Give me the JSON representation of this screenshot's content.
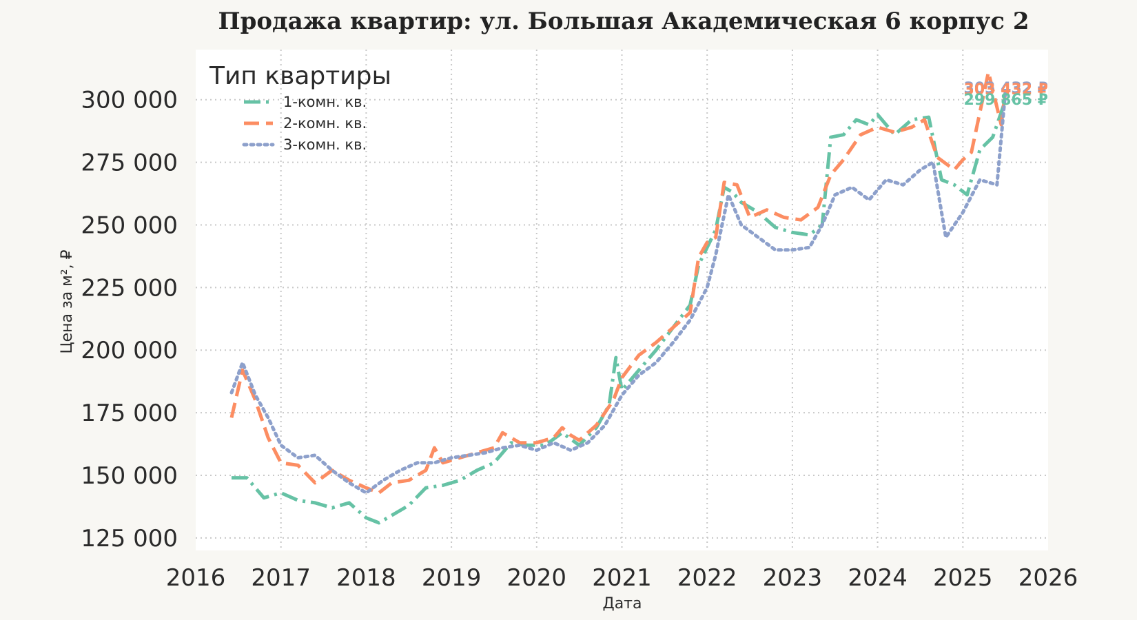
{
  "chart_data": {
    "type": "line",
    "title": "Продажа квартир: ул. Большая Академическая 6 корпус 2",
    "xlabel": "Дата",
    "ylabel": "Цена за м², ₽",
    "xlim": [
      2016,
      2026
    ],
    "ylim": [
      120000,
      320000
    ],
    "x_ticks": [
      "2016",
      "2017",
      "2018",
      "2019",
      "2020",
      "2021",
      "2022",
      "2023",
      "2024",
      "2025",
      "2026"
    ],
    "y_ticks": [
      "125 000",
      "150 000",
      "175 000",
      "200 000",
      "225 000",
      "250 000",
      "275 000",
      "300 000"
    ],
    "y_tick_values": [
      125000,
      150000,
      175000,
      200000,
      225000,
      250000,
      275000,
      300000
    ],
    "grid": true,
    "legend": {
      "title": "Тип квартиры",
      "position": "top-left"
    },
    "series": [
      {
        "name": "1-комн. кв.",
        "color": "#66c2a5",
        "style": "dashdot",
        "end_label": "299 865 ₽",
        "x": [
          2016.42,
          2016.6,
          2016.8,
          2017.0,
          2017.2,
          2017.4,
          2017.6,
          2017.8,
          2018.0,
          2018.15,
          2018.3,
          2018.5,
          2018.7,
          2018.9,
          2019.1,
          2019.3,
          2019.5,
          2019.7,
          2019.9,
          2020.1,
          2020.3,
          2020.5,
          2020.7,
          2020.85,
          2020.93,
          2021.0,
          2021.2,
          2021.4,
          2021.6,
          2021.8,
          2021.9,
          2022.0,
          2022.1,
          2022.2,
          2022.3,
          2022.4,
          2022.6,
          2022.8,
          2023.0,
          2023.2,
          2023.35,
          2023.45,
          2023.6,
          2023.75,
          2023.9,
          2024.0,
          2024.2,
          2024.4,
          2024.6,
          2024.75,
          2024.9,
          2025.05,
          2025.2,
          2025.35,
          2025.5
        ],
        "y": [
          149000,
          149000,
          141000,
          143000,
          140000,
          139000,
          137000,
          139000,
          133000,
          131000,
          134000,
          138000,
          145000,
          146000,
          148000,
          152000,
          155000,
          163000,
          162000,
          162000,
          167000,
          162000,
          169000,
          178000,
          197000,
          184000,
          192000,
          200000,
          209000,
          218000,
          234000,
          241000,
          248000,
          265000,
          263000,
          259000,
          255000,
          249000,
          247000,
          246000,
          250000,
          285000,
          286000,
          292000,
          290000,
          294000,
          286000,
          292000,
          293000,
          268000,
          266000,
          262000,
          280000,
          285000,
          299865
        ]
      },
      {
        "name": "2-комн. кв.",
        "color": "#fc8d62",
        "style": "dashed",
        "end_label": "303 432 ₽",
        "x": [
          2016.42,
          2016.55,
          2016.7,
          2016.85,
          2017.0,
          2017.2,
          2017.4,
          2017.6,
          2017.8,
          2018.0,
          2018.15,
          2018.3,
          2018.5,
          2018.7,
          2018.8,
          2018.9,
          2019.1,
          2019.3,
          2019.5,
          2019.6,
          2019.8,
          2020.0,
          2020.2,
          2020.3,
          2020.4,
          2020.5,
          2020.7,
          2020.9,
          2021.0,
          2021.2,
          2021.4,
          2021.6,
          2021.8,
          2021.9,
          2022.0,
          2022.1,
          2022.2,
          2022.35,
          2022.5,
          2022.7,
          2022.9,
          2023.1,
          2023.3,
          2023.45,
          2023.6,
          2023.8,
          2024.0,
          2024.2,
          2024.4,
          2024.55,
          2024.7,
          2024.9,
          2025.0,
          2025.1,
          2025.3,
          2025.45,
          2025.5
        ],
        "y": [
          173000,
          192000,
          180000,
          165000,
          155000,
          154000,
          147000,
          152000,
          148000,
          145000,
          143000,
          147000,
          148000,
          152000,
          161000,
          155000,
          157000,
          159000,
          161000,
          167000,
          163000,
          163000,
          165000,
          169000,
          166000,
          164000,
          170000,
          180000,
          189000,
          198000,
          203000,
          209000,
          215000,
          237000,
          243000,
          245000,
          267000,
          266000,
          253000,
          256000,
          253000,
          252000,
          257000,
          270000,
          276000,
          286000,
          289000,
          287000,
          289000,
          292000,
          277000,
          272000,
          276000,
          279000,
          311000,
          290000,
          303432
        ]
      },
      {
        "name": "3-комн. кв.",
        "color": "#8da0cb",
        "style": "dotted",
        "end_label": "303 432 ₽",
        "x": [
          2016.42,
          2016.55,
          2016.7,
          2016.85,
          2017.0,
          2017.2,
          2017.4,
          2017.6,
          2017.8,
          2018.0,
          2018.2,
          2018.4,
          2018.6,
          2018.8,
          2019.0,
          2019.2,
          2019.4,
          2019.6,
          2019.8,
          2020.0,
          2020.2,
          2020.4,
          2020.6,
          2020.8,
          2021.0,
          2021.2,
          2021.4,
          2021.6,
          2021.8,
          2022.0,
          2022.1,
          2022.25,
          2022.4,
          2022.6,
          2022.8,
          2023.0,
          2023.2,
          2023.35,
          2023.5,
          2023.7,
          2023.9,
          2024.1,
          2024.3,
          2024.5,
          2024.65,
          2024.8,
          2025.0,
          2025.2,
          2025.4,
          2025.5
        ],
        "y": [
          183000,
          195000,
          182000,
          173000,
          162000,
          157000,
          158000,
          152000,
          147000,
          143000,
          148000,
          152000,
          155000,
          155000,
          157000,
          158000,
          159000,
          161000,
          162000,
          160000,
          163000,
          160000,
          163000,
          170000,
          182000,
          190000,
          195000,
          203000,
          212000,
          225000,
          238000,
          262000,
          250000,
          245000,
          240000,
          240000,
          241000,
          250000,
          262000,
          265000,
          260000,
          268000,
          266000,
          272000,
          275000,
          245000,
          255000,
          268000,
          266000,
          303432
        ]
      }
    ]
  }
}
